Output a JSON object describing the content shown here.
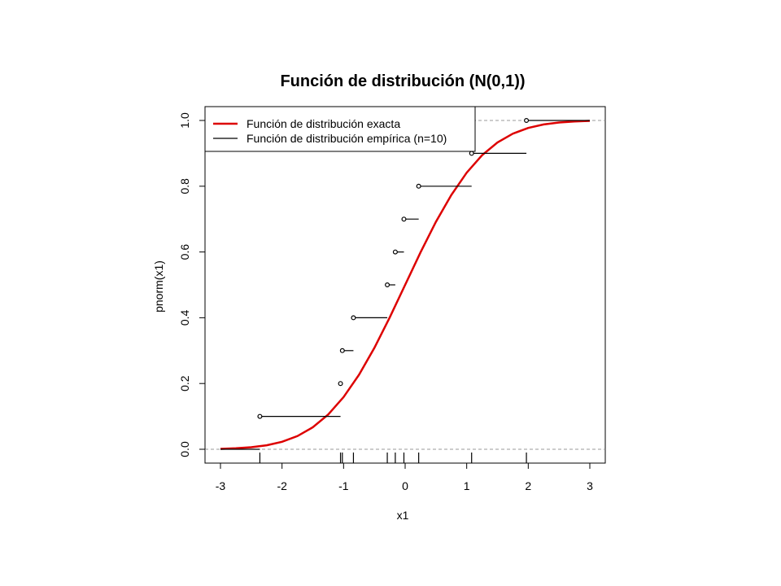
{
  "chart_data": {
    "type": "line",
    "title": "Función de distribución (N(0,1))",
    "xlabel": "x1",
    "ylabel": "pnorm(x1)",
    "xlim": [
      -3,
      3
    ],
    "ylim": [
      0,
      1
    ],
    "xticks": [
      "-3",
      "-2",
      "-1",
      "0",
      "1",
      "2",
      "3"
    ],
    "yticks": [
      "0.0",
      "0.2",
      "0.4",
      "0.6",
      "0.8",
      "1.0"
    ],
    "grid": false,
    "legend_position": "top-left",
    "reference_lines_y": [
      0,
      1
    ],
    "exact_cdf": {
      "name": "Función de distribución exacta",
      "color": "#dd0000",
      "x": [
        -3.0,
        -2.75,
        -2.5,
        -2.25,
        -2.0,
        -1.75,
        -1.5,
        -1.25,
        -1.0,
        -0.75,
        -0.5,
        -0.25,
        0.0,
        0.25,
        0.5,
        0.75,
        1.0,
        1.25,
        1.5,
        1.75,
        2.0,
        2.25,
        2.5,
        2.75,
        3.0
      ],
      "y": [
        0.0013,
        0.003,
        0.0062,
        0.0122,
        0.0228,
        0.0401,
        0.0668,
        0.1056,
        0.1587,
        0.2266,
        0.3085,
        0.4013,
        0.5,
        0.5987,
        0.6915,
        0.7734,
        0.8413,
        0.8944,
        0.9332,
        0.9599,
        0.9772,
        0.9878,
        0.9938,
        0.997,
        0.9987
      ]
    },
    "empirical_cdf": {
      "name": "Función de distribución empírica (n=10)",
      "color": "#000000",
      "sample_x": [
        -2.36,
        -1.05,
        -1.02,
        -0.84,
        -0.29,
        -0.16,
        -0.02,
        0.22,
        1.08,
        1.97
      ],
      "steps_y": [
        0.1,
        0.2,
        0.3,
        0.4,
        0.5,
        0.6,
        0.7,
        0.8,
        0.9,
        1.0
      ]
    }
  }
}
